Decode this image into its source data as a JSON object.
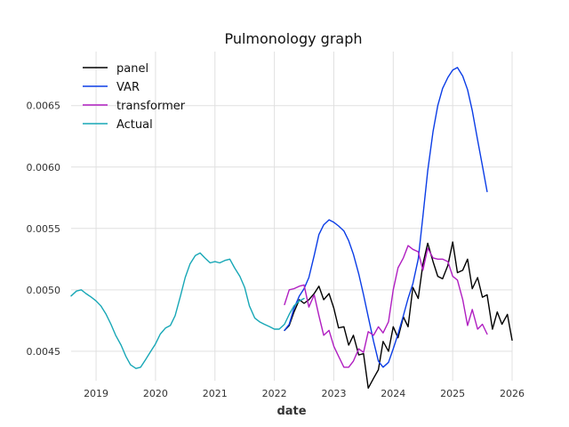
{
  "chart_data": {
    "type": "line",
    "title": "Pulmonology graph",
    "xlabel": "date",
    "ylabel": "",
    "x_axis": "date",
    "xlim": [
      2018.58,
      2026.0
    ],
    "ylim": [
      0.00426,
      0.00694
    ],
    "x_ticks": [
      "2019",
      "2020",
      "2021",
      "2022",
      "2023",
      "2024",
      "2025",
      "2026"
    ],
    "x_tick_values": [
      2019,
      2020,
      2021,
      2022,
      2023,
      2024,
      2025,
      2026
    ],
    "y_ticks": [
      "0.0045",
      "0.0050",
      "0.0055",
      "0.0060",
      "0.0065"
    ],
    "y_tick_values": [
      0.0045,
      0.005,
      0.0055,
      0.006,
      0.0065
    ],
    "grid": true,
    "legend": "top-left",
    "series": [
      {
        "name": "panel",
        "color": "#000000",
        "x": [
          2022.17,
          2022.25,
          2022.33,
          2022.42,
          2022.5,
          2022.58,
          2022.67,
          2022.75,
          2022.83,
          2022.92,
          2023.0,
          2023.08,
          2023.17,
          2023.25,
          2023.33,
          2023.42,
          2023.5,
          2023.58,
          2023.67,
          2023.75,
          2023.83,
          2023.92,
          2024.0,
          2024.08,
          2024.17,
          2024.25,
          2024.33,
          2024.42,
          2024.5,
          2024.58,
          2024.67,
          2024.75,
          2024.83,
          2024.92,
          2025.0,
          2025.08,
          2025.17,
          2025.25,
          2025.33,
          2025.42,
          2025.5,
          2025.58,
          2025.67,
          2025.75,
          2025.83,
          2025.92,
          2026.0
        ],
        "values": [
          0.00467,
          0.00471,
          0.00482,
          0.00492,
          0.00489,
          0.00492,
          0.00497,
          0.00503,
          0.00492,
          0.00497,
          0.00485,
          0.00469,
          0.0047,
          0.00455,
          0.00463,
          0.00447,
          0.00448,
          0.0042,
          0.00428,
          0.00435,
          0.00458,
          0.0045,
          0.0047,
          0.00461,
          0.00478,
          0.0047,
          0.00502,
          0.00493,
          0.00521,
          0.00538,
          0.00523,
          0.00511,
          0.00509,
          0.0052,
          0.00539,
          0.00514,
          0.00516,
          0.00525,
          0.00501,
          0.0051,
          0.00494,
          0.00496,
          0.00468,
          0.00482,
          0.00472,
          0.0048,
          0.00459
        ]
      },
      {
        "name": "VAR",
        "color": "#0b3de6",
        "x": [
          2022.17,
          2022.25,
          2022.33,
          2022.42,
          2022.5,
          2022.58,
          2022.67,
          2022.75,
          2022.83,
          2022.92,
          2023.0,
          2023.08,
          2023.17,
          2023.25,
          2023.33,
          2023.42,
          2023.5,
          2023.58,
          2023.67,
          2023.75,
          2023.83,
          2023.92,
          2024.0,
          2024.08,
          2024.17,
          2024.25,
          2024.33,
          2024.42,
          2024.5,
          2024.58,
          2024.67,
          2024.75,
          2024.83,
          2024.92,
          2025.0,
          2025.08,
          2025.17,
          2025.25,
          2025.33,
          2025.42,
          2025.5,
          2025.58
        ],
        "values": [
          0.00467,
          0.00472,
          0.00485,
          0.00495,
          0.00501,
          0.0051,
          0.00528,
          0.00545,
          0.00553,
          0.00557,
          0.00555,
          0.00552,
          0.00548,
          0.0054,
          0.00529,
          0.00513,
          0.00496,
          0.00478,
          0.00458,
          0.00442,
          0.00437,
          0.00441,
          0.00452,
          0.00464,
          0.00479,
          0.00493,
          0.00505,
          0.00525,
          0.0056,
          0.00597,
          0.00629,
          0.0065,
          0.00664,
          0.00673,
          0.00679,
          0.00681,
          0.00674,
          0.00663,
          0.00646,
          0.00622,
          0.00601,
          0.0058
        ]
      },
      {
        "name": "transformer",
        "color": "#b01ec1",
        "x": [
          2022.17,
          2022.25,
          2022.33,
          2022.42,
          2022.5,
          2022.58,
          2022.67,
          2022.75,
          2022.83,
          2022.92,
          2023.0,
          2023.08,
          2023.17,
          2023.25,
          2023.33,
          2023.42,
          2023.5,
          2023.58,
          2023.67,
          2023.75,
          2023.83,
          2023.92,
          2024.0,
          2024.08,
          2024.17,
          2024.25,
          2024.33,
          2024.42,
          2024.5,
          2024.58,
          2024.67,
          2024.75,
          2024.83,
          2024.92,
          2025.0,
          2025.08,
          2025.17,
          2025.25,
          2025.33,
          2025.42,
          2025.5,
          2025.58
        ],
        "values": [
          0.00488,
          0.005,
          0.00501,
          0.00503,
          0.00504,
          0.00486,
          0.00496,
          0.00479,
          0.00463,
          0.00467,
          0.00454,
          0.00446,
          0.00437,
          0.00437,
          0.00442,
          0.00452,
          0.00449,
          0.00466,
          0.00463,
          0.0047,
          0.00465,
          0.00474,
          0.005,
          0.00518,
          0.00526,
          0.00536,
          0.00533,
          0.00531,
          0.00516,
          0.00534,
          0.00526,
          0.00525,
          0.00525,
          0.00523,
          0.00511,
          0.00508,
          0.00492,
          0.00471,
          0.00484,
          0.00468,
          0.00472,
          0.00464
        ]
      },
      {
        "name": "Actual",
        "color": "#17a7b6",
        "x": [
          2018.58,
          2018.67,
          2018.75,
          2018.83,
          2018.92,
          2019.0,
          2019.08,
          2019.17,
          2019.25,
          2019.33,
          2019.42,
          2019.5,
          2019.58,
          2019.67,
          2019.75,
          2019.83,
          2019.92,
          2020.0,
          2020.08,
          2020.17,
          2020.25,
          2020.33,
          2020.42,
          2020.5,
          2020.58,
          2020.67,
          2020.75,
          2020.83,
          2020.92,
          2021.0,
          2021.08,
          2021.17,
          2021.25,
          2021.33,
          2021.42,
          2021.5,
          2021.58,
          2021.67,
          2021.75,
          2021.83,
          2021.92,
          2022.0,
          2022.08,
          2022.17,
          2022.25,
          2022.33,
          2022.42,
          2022.5
        ],
        "values": [
          0.00495,
          0.00499,
          0.005,
          0.00497,
          0.00494,
          0.00491,
          0.00487,
          0.0048,
          0.00472,
          0.00463,
          0.00455,
          0.00446,
          0.00439,
          0.00436,
          0.00437,
          0.00443,
          0.0045,
          0.00456,
          0.00464,
          0.00469,
          0.00471,
          0.00479,
          0.00495,
          0.0051,
          0.00521,
          0.00528,
          0.0053,
          0.00526,
          0.00522,
          0.00523,
          0.00522,
          0.00524,
          0.00525,
          0.00518,
          0.00511,
          0.00502,
          0.00487,
          0.00477,
          0.00474,
          0.00472,
          0.0047,
          0.00468,
          0.00468,
          0.00472,
          0.0048,
          0.00487,
          0.00491,
          0.00493
        ]
      }
    ]
  }
}
